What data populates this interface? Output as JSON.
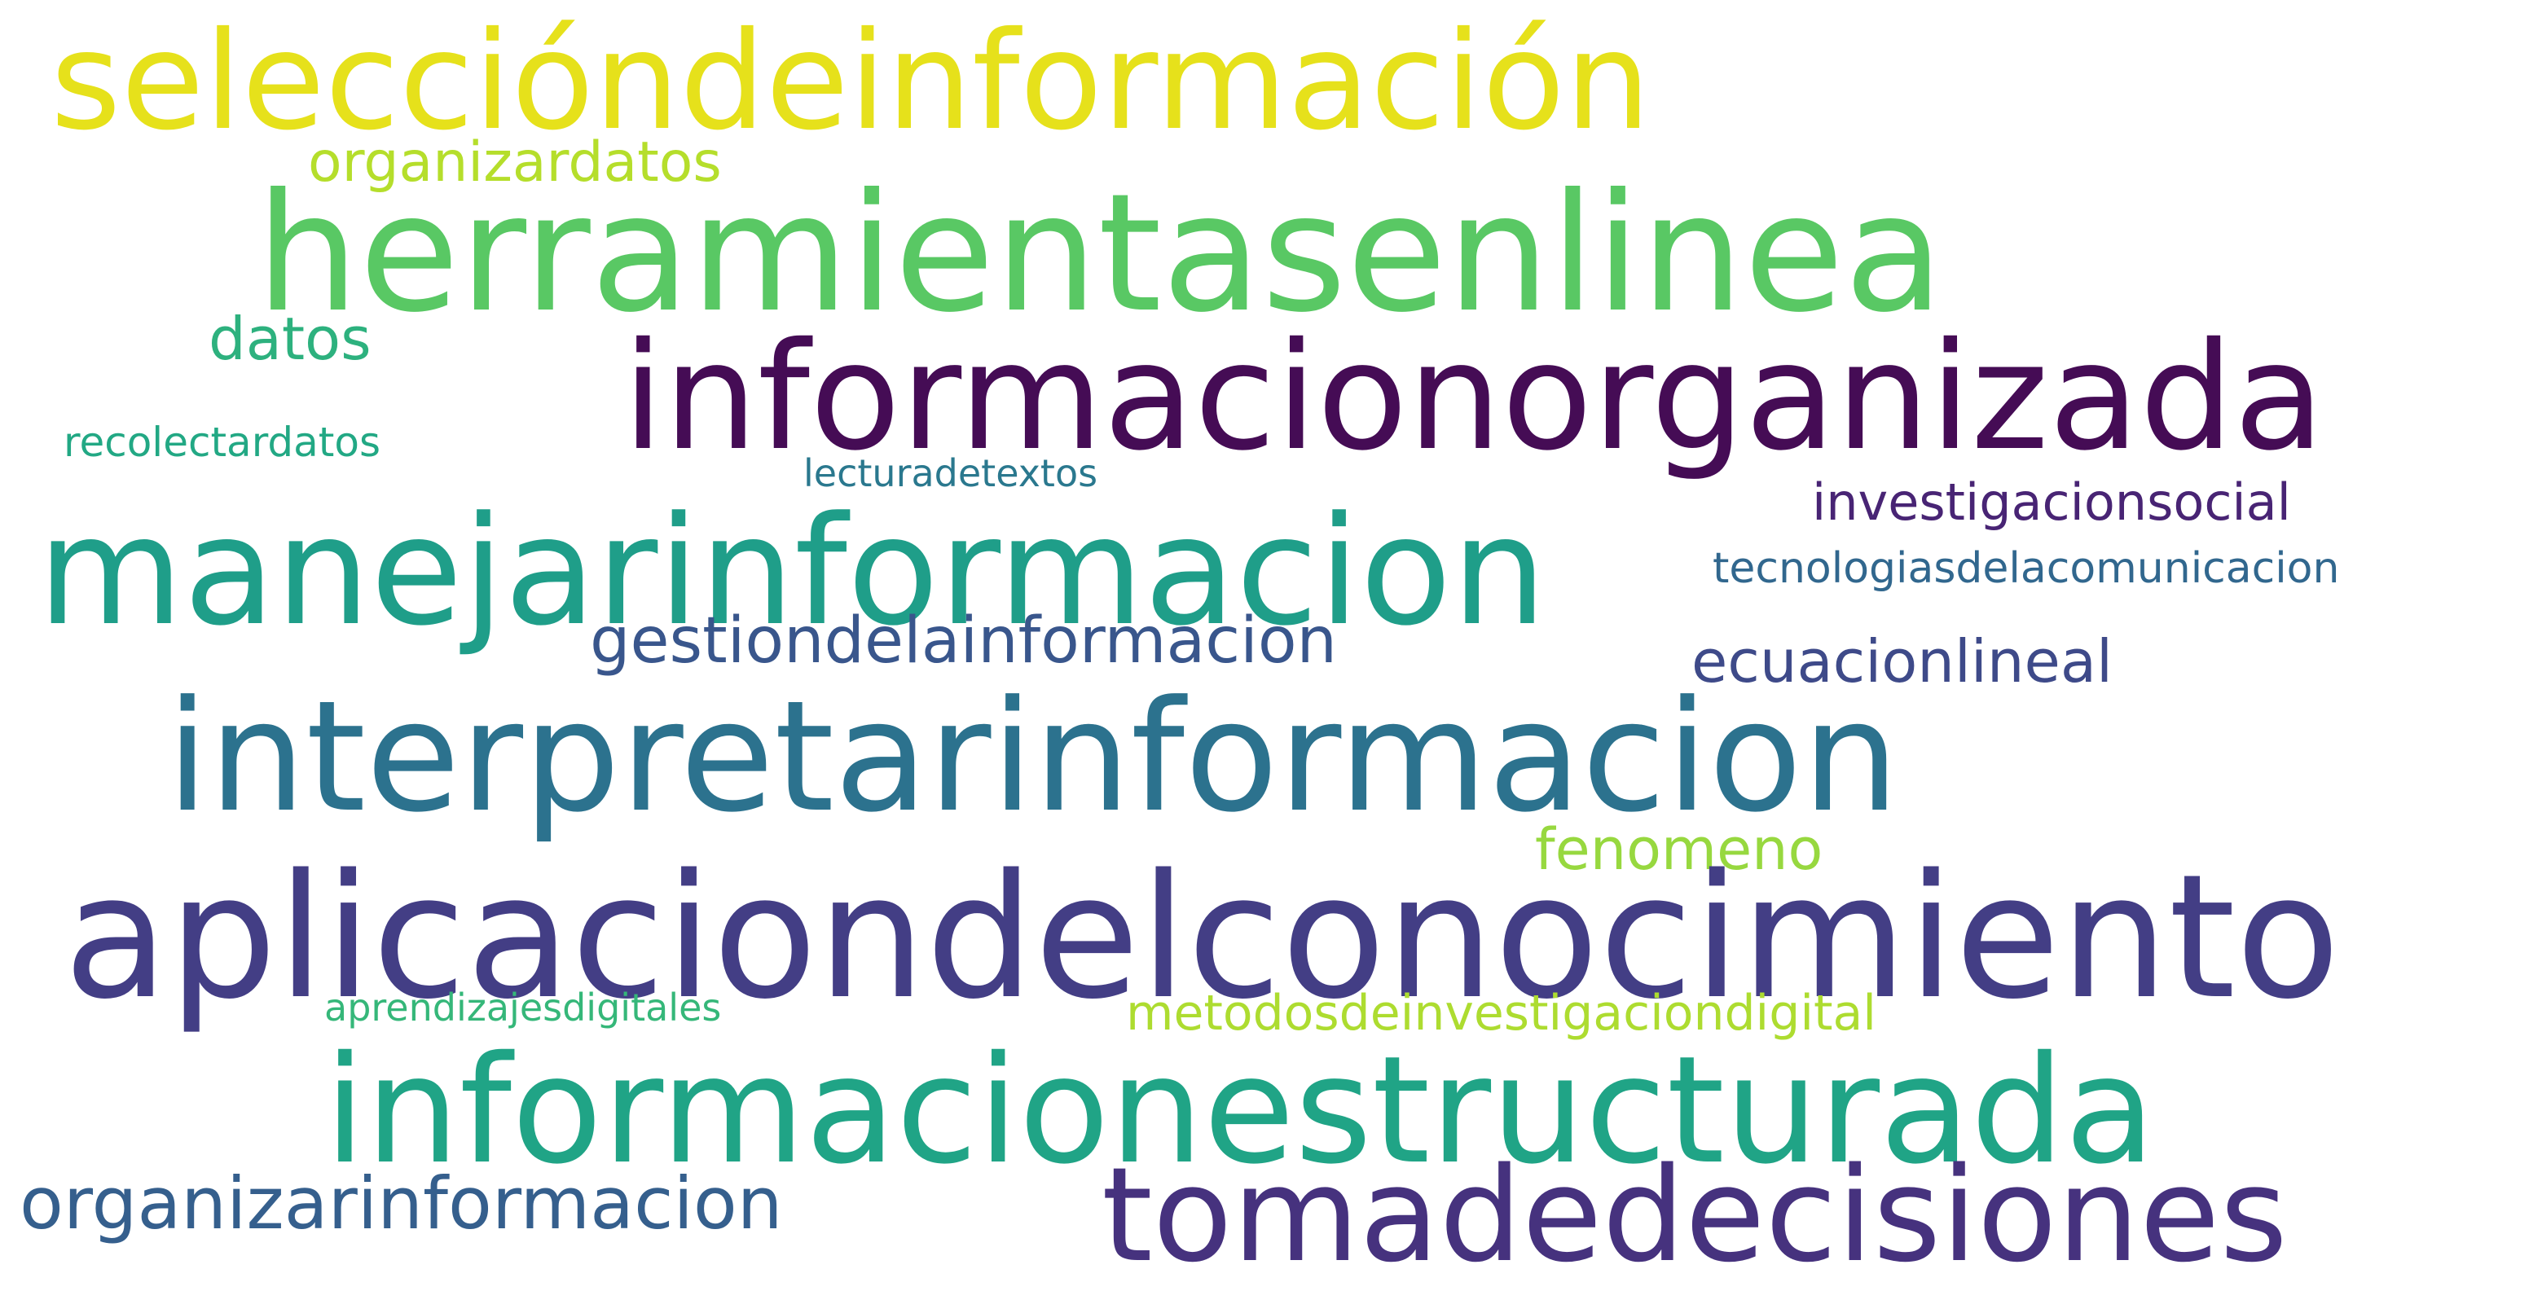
{
  "words": [
    {
      "text": "seleccióndeinformación",
      "color": "#e6e11b"
    },
    {
      "text": "organizardatos",
      "color": "#b5de2b"
    },
    {
      "text": "herramientasenlinea",
      "color": "#59c864"
    },
    {
      "text": "informacionorganizada",
      "color": "#450c55"
    },
    {
      "text": "datos",
      "color": "#2db17e"
    },
    {
      "text": "recolectardatos",
      "color": "#22a884"
    },
    {
      "text": "lecturadetextos",
      "color": "#2a788e"
    },
    {
      "text": "investigacionsocial",
      "color": "#482474"
    },
    {
      "text": "manejarinformacion",
      "color": "#1f9e89"
    },
    {
      "text": "tecnologiasdelacomunicacion",
      "color": "#31678e"
    },
    {
      "text": "gestiondelainformacion",
      "color": "#39568c"
    },
    {
      "text": "ecuacionlineal",
      "color": "#3e4a89"
    },
    {
      "text": "interpretarinformacion",
      "color": "#2c728e"
    },
    {
      "text": "fenomeno",
      "color": "#97d83f"
    },
    {
      "text": "aplicaciondelconocimiento",
      "color": "#433e85"
    },
    {
      "text": "aprendizajesdigitales",
      "color": "#35b779"
    },
    {
      "text": "metodosdeinvestigaciondigital",
      "color": "#addc30"
    },
    {
      "text": "informacionestructurada",
      "color": "#20a486"
    },
    {
      "text": "organizarinformacion",
      "color": "#355f8d"
    },
    {
      "text": "tomadedecisiones",
      "color": "#46327e"
    }
  ]
}
